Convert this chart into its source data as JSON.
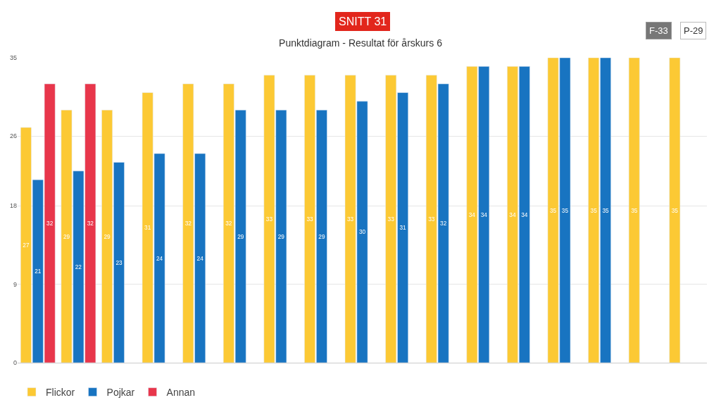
{
  "chart_data": {
    "type": "bar",
    "title": "Punktdiagram - Resultat för årskurs 6",
    "annotations": [
      "SNITT 31",
      "F-33",
      "P-29"
    ],
    "categories": [
      null,
      null,
      null,
      null,
      null,
      null,
      null,
      null,
      null,
      null,
      null,
      null,
      null,
      null,
      null,
      null,
      null
    ],
    "series": [
      {
        "name": "Flickor",
        "color": "#fcc934",
        "values": [
          27,
          29,
          29,
          31,
          32,
          32,
          33,
          33,
          33,
          33,
          33,
          34,
          34,
          35,
          35,
          35,
          35
        ]
      },
      {
        "name": "Pojkar",
        "color": "#1874c1",
        "values": [
          21,
          22,
          23,
          24,
          24,
          29,
          29,
          29,
          30,
          31,
          32,
          34,
          34,
          35,
          35,
          null,
          null
        ]
      },
      {
        "name": "Annan",
        "color": "#e8364b",
        "values": [
          32,
          32,
          null,
          null,
          null,
          null,
          null,
          null,
          null,
          null,
          null,
          null,
          null,
          null,
          null,
          null,
          null
        ]
      }
    ],
    "ylim": [
      0,
      35
    ],
    "yticks": [
      0,
      9,
      18,
      26,
      35
    ],
    "grid": "y",
    "legend": "bottom left",
    "data_labels": true,
    "tick_labels": "y"
  }
}
